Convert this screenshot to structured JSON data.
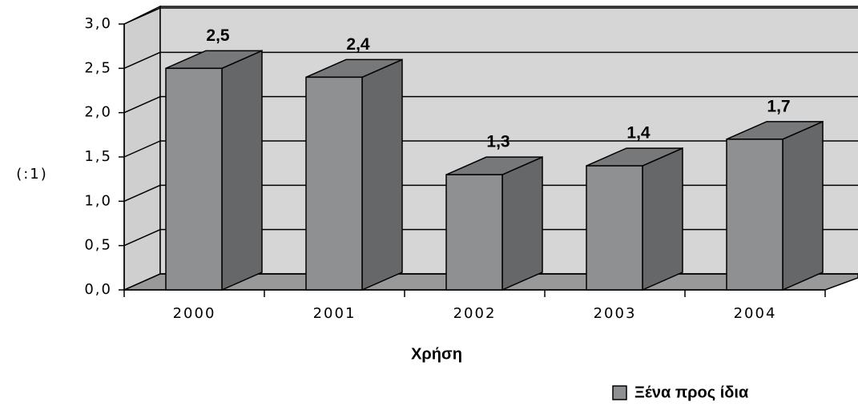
{
  "chart_data": {
    "type": "bar3d",
    "categories": [
      "2000",
      "2001",
      "2002",
      "2003",
      "2004"
    ],
    "series": [
      {
        "name": "Ξένα προς ίδια",
        "color": "#8f9092",
        "values": [
          2.5,
          2.4,
          1.3,
          1.4,
          1.7
        ],
        "value_labels": [
          "2,5",
          "2,4",
          "1,3",
          "1,4",
          "1,7"
        ]
      }
    ],
    "ylabel": "(:1)",
    "xlabel": "Χρήση",
    "ylim": [
      0,
      3
    ],
    "yticks": [
      {
        "value": 0,
        "label": "0,0"
      },
      {
        "value": 0.5,
        "label": "0,5"
      },
      {
        "value": 1,
        "label": "1,0"
      },
      {
        "value": 1.5,
        "label": "1,5"
      },
      {
        "value": 2,
        "label": "2,0"
      },
      {
        "value": 2.5,
        "label": "2,5"
      },
      {
        "value": 3,
        "label": "3,0"
      }
    ],
    "grid": true
  }
}
